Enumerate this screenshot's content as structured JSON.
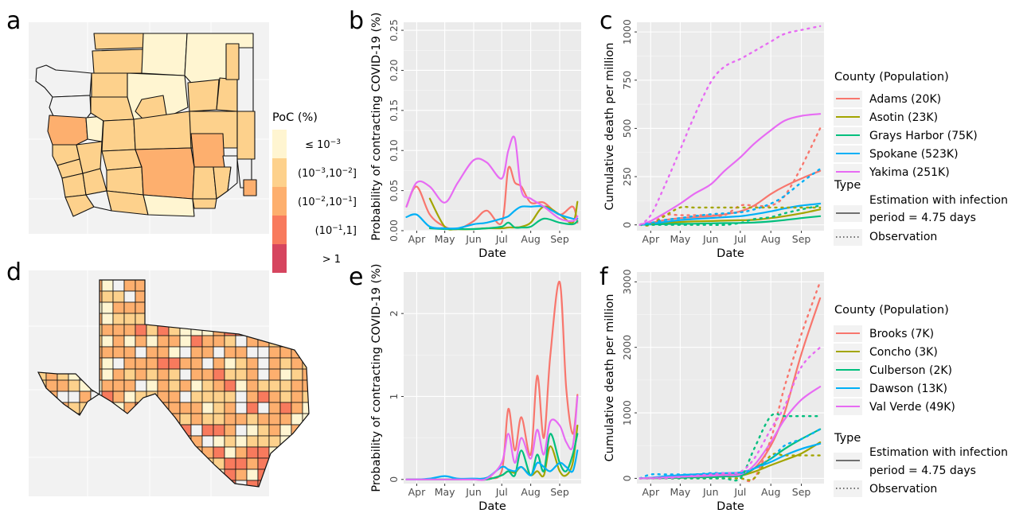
{
  "panel_letters": {
    "a": "a",
    "b": "b",
    "c": "c",
    "d": "d",
    "e": "e",
    "f": "f"
  },
  "colors": {
    "panel_bg": "#ebebeb",
    "grid": "#ffffff",
    "map_bg": "#f2f2f2",
    "poc_bins": [
      "#fff5d1",
      "#fdd18c",
      "#fdaf6e",
      "#f87a5d",
      "#d6455f"
    ]
  },
  "poc_legend": {
    "title": "PoC (%)",
    "entries": [
      {
        "base1": "≤ 10",
        "sup1": "−3",
        "base2": "",
        "sup2": "",
        "tail": ""
      },
      {
        "base1": "(10",
        "sup1": "−3",
        "base2": ",10",
        "sup2": "−2",
        "tail": "]"
      },
      {
        "base1": "(10",
        "sup1": "−2",
        "base2": ",10",
        "sup2": "−1",
        "tail": "]"
      },
      {
        "base1": "(10",
        "sup1": "−1",
        "base2": ",1]",
        "sup2": "",
        "tail": ""
      },
      {
        "base1": "> 1",
        "sup1": "",
        "base2": "",
        "sup2": "",
        "tail": ""
      }
    ]
  },
  "legend_wa": {
    "county_title": "County (Population)",
    "counties": [
      {
        "name": "Adams (20K)",
        "color": "#f8766d"
      },
      {
        "name": "Asotin (23K)",
        "color": "#a3a500"
      },
      {
        "name": "Grays Harbor (75K)",
        "color": "#00bf7d"
      },
      {
        "name": "Spokane (523K)",
        "color": "#00b0f6"
      },
      {
        "name": "Yakima (251K)",
        "color": "#e76bf3"
      }
    ],
    "type_title": "Type",
    "types": [
      {
        "style": "solid",
        "line1": "Estimation with infection",
        "line2": "period = 4.75 days"
      },
      {
        "style": "dotted",
        "line1": "Observation",
        "line2": ""
      }
    ]
  },
  "legend_tx": {
    "county_title": "County (Population)",
    "counties": [
      {
        "name": "Brooks (7K)",
        "color": "#f8766d"
      },
      {
        "name": "Concho (3K)",
        "color": "#a3a500"
      },
      {
        "name": "Culberson (2K)",
        "color": "#00bf7d"
      },
      {
        "name": "Dawson (13K)",
        "color": "#00b0f6"
      },
      {
        "name": "Val Verde (49K)",
        "color": "#e76bf3"
      }
    ],
    "type_title": "Type",
    "types": [
      {
        "style": "solid",
        "line1": "Estimation with infection",
        "line2": "period = 4.75 days"
      },
      {
        "style": "dotted",
        "line1": "Observation",
        "line2": ""
      }
    ]
  },
  "chart_data": [
    {
      "id": "b",
      "type": "line",
      "xlabel": "Date",
      "ylabel": "Probability of contracting COVID-19 (%)",
      "x_ticks": [
        "Apr",
        "May",
        "Jun",
        "Jul",
        "Aug",
        "Sep"
      ],
      "x_dates": [
        "Mar 21",
        "Apr 1",
        "Apr 15",
        "May 1",
        "May 15",
        "Jun 1",
        "Jun 15",
        "Jul 1",
        "Jul 8",
        "Jul 15",
        "Jul 22",
        "Aug 1",
        "Aug 15",
        "Sep 1",
        "Sep 15",
        "Sep 20"
      ],
      "y_ticks": [
        "0.00",
        "0.05",
        "0.10",
        "0.15",
        "0.20",
        "0.25"
      ],
      "ylim": [
        0,
        0.26
      ],
      "grid": true,
      "series": [
        {
          "name": "Adams (20K)",
          "color": "#f8766d",
          "values": [
            0.03,
            0.055,
            0.02,
            0.005,
            0.002,
            0.012,
            0.025,
            0.01,
            0.078,
            0.06,
            0.055,
            0.035,
            0.035,
            0.02,
            0.03,
            0.01
          ]
        },
        {
          "name": "Asotin (23K)",
          "color": "#a3a500",
          "values": [
            null,
            null,
            0.04,
            0.005,
            0.002,
            0.002,
            0.003,
            0.003,
            0.004,
            0.004,
            0.005,
            0.01,
            0.03,
            0.02,
            0.01,
            0.036
          ]
        },
        {
          "name": "Grays Harbor (75K)",
          "color": "#00bf7d",
          "values": [
            null,
            null,
            0.003,
            0.002,
            0.002,
            0.002,
            0.003,
            0.005,
            0.01,
            0.004,
            0.004,
            0.005,
            0.015,
            0.01,
            0.008,
            0.012
          ]
        },
        {
          "name": "Spokane (523K)",
          "color": "#00b0f6",
          "values": [
            0.017,
            0.02,
            0.005,
            0.003,
            0.003,
            0.008,
            0.01,
            0.015,
            0.018,
            0.025,
            0.03,
            0.03,
            0.03,
            0.02,
            0.015,
            0.015
          ]
        },
        {
          "name": "Yakima (251K)",
          "color": "#e76bf3",
          "values": [
            0.03,
            0.06,
            0.055,
            0.035,
            0.06,
            0.088,
            0.085,
            0.065,
            0.1,
            0.115,
            0.05,
            0.04,
            0.03,
            0.015,
            0.012,
            0.018
          ]
        }
      ]
    },
    {
      "id": "c",
      "type": "line",
      "xlabel": "Date",
      "ylabel": "Cumulative death per million",
      "x_ticks": [
        "Apr",
        "May",
        "Jun",
        "Jul",
        "Aug",
        "Sep"
      ],
      "x_dates": [
        "Mar 21",
        "Apr 1",
        "Apr 15",
        "May 1",
        "May 15",
        "Jun 1",
        "Jun 15",
        "Jul 1",
        "Jul 15",
        "Aug 1",
        "Aug 15",
        "Sep 1",
        "Sep 20"
      ],
      "y_ticks": [
        "0",
        "250",
        "500",
        "750",
        "1000"
      ],
      "ylim": [
        -30,
        1050
      ],
      "grid": true,
      "series": [
        {
          "name": "Adams (20K)",
          "color": "#f8766d",
          "type": "Estimation",
          "values": [
            0,
            10,
            25,
            35,
            40,
            45,
            55,
            70,
            100,
            160,
            200,
            240,
            280
          ]
        },
        {
          "name": "Asotin (23K)",
          "color": "#a3a500",
          "type": "Estimation",
          "values": [
            0,
            5,
            10,
            15,
            18,
            20,
            22,
            24,
            26,
            35,
            45,
            60,
            80
          ]
        },
        {
          "name": "Grays Harbor (75K)",
          "color": "#00bf7d",
          "type": "Estimation",
          "values": [
            0,
            2,
            4,
            5,
            6,
            8,
            9,
            10,
            12,
            18,
            25,
            35,
            45
          ]
        },
        {
          "name": "Spokane (523K)",
          "color": "#00b0f6",
          "type": "Estimation",
          "values": [
            0,
            5,
            15,
            25,
            30,
            35,
            40,
            45,
            55,
            70,
            85,
            100,
            110
          ]
        },
        {
          "name": "Yakima (251K)",
          "color": "#e76bf3",
          "type": "Estimation",
          "values": [
            0,
            20,
            60,
            110,
            160,
            210,
            280,
            350,
            420,
            490,
            540,
            565,
            575
          ]
        },
        {
          "name": "Adams (20K)",
          "color": "#f8766d",
          "type": "Observation",
          "values": [
            0,
            0,
            50,
            50,
            50,
            50,
            50,
            100,
            100,
            100,
            150,
            300,
            500
          ]
        },
        {
          "name": "Asotin (23K)",
          "color": "#a3a500",
          "type": "Observation",
          "values": [
            0,
            0,
            45,
            90,
            90,
            90,
            90,
            90,
            90,
            90,
            90,
            90,
            90
          ]
        },
        {
          "name": "Grays Harbor (75K)",
          "color": "#00bf7d",
          "type": "Observation",
          "values": [
            0,
            0,
            0,
            0,
            0,
            0,
            0,
            10,
            30,
            40,
            60,
            80,
            100
          ]
        },
        {
          "name": "Spokane (523K)",
          "color": "#00b0f6",
          "type": "Observation",
          "values": [
            0,
            10,
            25,
            35,
            45,
            55,
            60,
            65,
            80,
            110,
            150,
            220,
            290
          ]
        },
        {
          "name": "Yakima (251K)",
          "color": "#e76bf3",
          "type": "Observation",
          "values": [
            0,
            50,
            200,
            390,
            560,
            740,
            820,
            860,
            900,
            950,
            990,
            1010,
            1030
          ]
        }
      ]
    },
    {
      "id": "e",
      "type": "line",
      "xlabel": "Date",
      "ylabel": "Probability of contracting COVID-19 (%)",
      "x_ticks": [
        "Apr",
        "May",
        "Jun",
        "Jul",
        "Aug",
        "Sep"
      ],
      "x_dates": [
        "Mar 21",
        "Apr 1",
        "Apr 15",
        "May 1",
        "May 15",
        "Jun 1",
        "Jun 15",
        "Jul 1",
        "Jul 8",
        "Jul 15",
        "Jul 22",
        "Aug 1",
        "Aug 8",
        "Aug 15",
        "Aug 22",
        "Sep 1",
        "Sep 8",
        "Sep 15",
        "Sep 20"
      ],
      "y_ticks": [
        "0",
        "1",
        "2"
      ],
      "ylim": [
        -0.05,
        2.5
      ],
      "grid": true,
      "series": [
        {
          "name": "Brooks (7K)",
          "color": "#f8766d",
          "values": [
            0,
            0,
            0,
            0,
            0,
            0,
            0.02,
            0.1,
            0.85,
            0.35,
            0.75,
            0.3,
            1.25,
            0.5,
            1.5,
            2.38,
            1.1,
            0.55,
            1.02
          ]
        },
        {
          "name": "Concho (3K)",
          "color": "#a3a500",
          "values": [
            0,
            0,
            0,
            0,
            0,
            0,
            0,
            0.05,
            0.1,
            0.08,
            0.15,
            0.05,
            0.1,
            0.05,
            0.4,
            0.1,
            0.05,
            0.2,
            0.65
          ]
        },
        {
          "name": "Culberson (2K)",
          "color": "#00bf7d",
          "values": [
            0,
            0,
            0,
            0,
            0,
            0,
            0,
            0.05,
            0.1,
            0.05,
            0.35,
            0.05,
            0.3,
            0.1,
            0.55,
            0.2,
            0.1,
            0.3,
            0.55
          ]
        },
        {
          "name": "Dawson (13K)",
          "color": "#00b0f6",
          "values": [
            0,
            0,
            0.01,
            0.04,
            0.01,
            0.01,
            0.02,
            0.15,
            0.12,
            0.1,
            0.15,
            0.05,
            0.2,
            0.15,
            0.1,
            0.2,
            0.15,
            0.1,
            0.35
          ]
        },
        {
          "name": "Val Verde (49K)",
          "color": "#e76bf3",
          "values": [
            0,
            0,
            0,
            0,
            0,
            0,
            0.01,
            0.2,
            0.55,
            0.2,
            0.5,
            0.25,
            0.6,
            0.3,
            0.7,
            0.65,
            0.45,
            0.4,
            1.0
          ]
        }
      ]
    },
    {
      "id": "f",
      "type": "line",
      "xlabel": "Date",
      "ylabel": "Cumulative death per million",
      "x_ticks": [
        "Apr",
        "May",
        "Jun",
        "Jul",
        "Aug",
        "Sep"
      ],
      "x_dates": [
        "Mar 21",
        "Apr 1",
        "Apr 15",
        "May 1",
        "May 15",
        "Jun 1",
        "Jun 15",
        "Jul 1",
        "Jul 15",
        "Aug 1",
        "Aug 15",
        "Sep 1",
        "Sep 20"
      ],
      "y_ticks": [
        "0",
        "1000",
        "2000",
        "3000"
      ],
      "ylim": [
        -80,
        3150
      ],
      "grid": true,
      "series": [
        {
          "name": "Brooks (7K)",
          "color": "#f8766d",
          "type": "Estimation",
          "values": [
            0,
            5,
            20,
            30,
            40,
            50,
            60,
            70,
            150,
            500,
            1000,
            1900,
            2750
          ]
        },
        {
          "name": "Concho (3K)",
          "color": "#a3a500",
          "type": "Estimation",
          "values": [
            0,
            2,
            5,
            10,
            15,
            20,
            30,
            40,
            100,
            200,
            280,
            380,
            550
          ]
        },
        {
          "name": "Culberson (2K)",
          "color": "#00bf7d",
          "type": "Estimation",
          "values": [
            0,
            2,
            5,
            10,
            15,
            20,
            30,
            40,
            150,
            300,
            450,
            600,
            750
          ]
        },
        {
          "name": "Dawson (13K)",
          "color": "#00b0f6",
          "type": "Estimation",
          "values": [
            0,
            10,
            30,
            50,
            60,
            70,
            80,
            90,
            150,
            250,
            350,
            450,
            530
          ]
        },
        {
          "name": "Val Verde (49K)",
          "color": "#e76bf3",
          "type": "Estimation",
          "values": [
            0,
            5,
            15,
            25,
            30,
            40,
            50,
            60,
            200,
            550,
            900,
            1200,
            1400
          ]
        },
        {
          "name": "Brooks (7K)",
          "color": "#f8766d",
          "type": "Observation",
          "values": [
            0,
            0,
            0,
            0,
            0,
            0,
            0,
            0,
            0,
            600,
            1400,
            2200,
            3000
          ]
        },
        {
          "name": "Concho (3K)",
          "color": "#a3a500",
          "type": "Observation",
          "values": [
            0,
            0,
            0,
            0,
            0,
            0,
            0,
            0,
            0,
            350,
            350,
            350,
            350
          ]
        },
        {
          "name": "Culberson (2K)",
          "color": "#00bf7d",
          "type": "Observation",
          "values": [
            0,
            0,
            0,
            0,
            0,
            0,
            0,
            0,
            450,
            950,
            950,
            950,
            950
          ]
        },
        {
          "name": "Dawson (13K)",
          "color": "#00b0f6",
          "type": "Observation",
          "values": [
            0,
            60,
            60,
            60,
            60,
            80,
            80,
            80,
            150,
            300,
            500,
            600,
            750
          ]
        },
        {
          "name": "Val Verde (49K)",
          "color": "#e76bf3",
          "type": "Observation",
          "values": [
            0,
            0,
            0,
            20,
            40,
            60,
            80,
            100,
            300,
            750,
            1100,
            1700,
            2000
          ]
        }
      ]
    }
  ]
}
